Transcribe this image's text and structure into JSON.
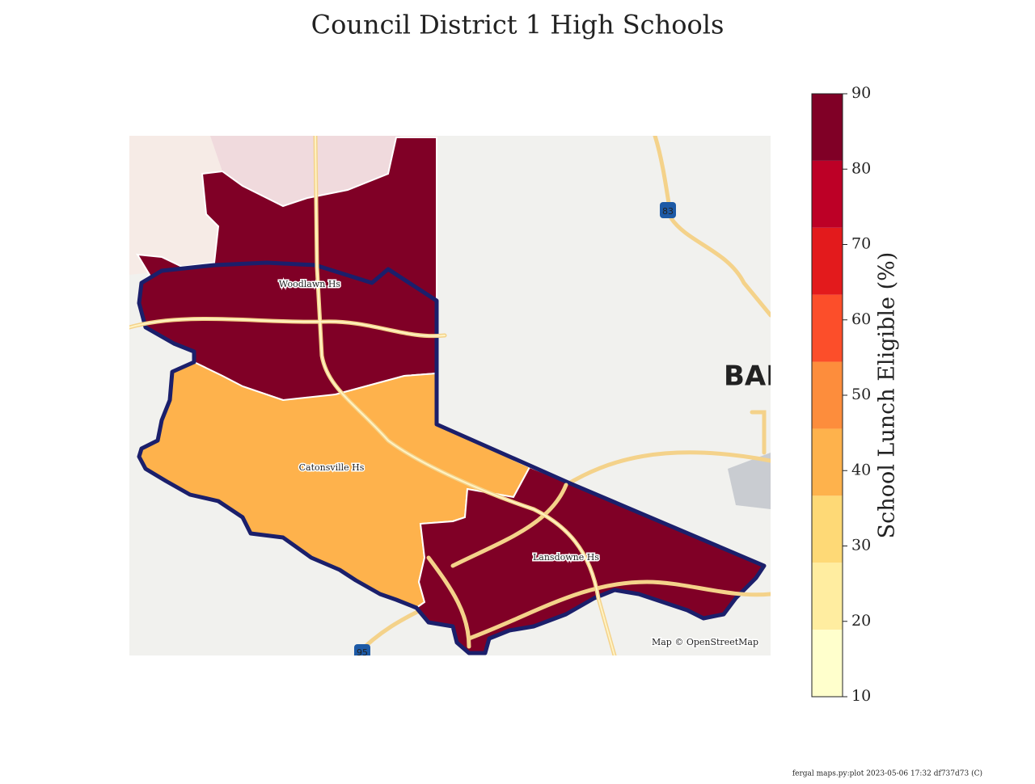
{
  "title": "Council District 1 High Schools",
  "districts": [
    {
      "label": "Woodlawn Hs",
      "value": 85
    },
    {
      "label": "Catonsville Hs",
      "value": 45
    },
    {
      "label": "Lansdowne Hs",
      "value": 85
    }
  ],
  "basemap_labels": [
    "BALT",
    "83",
    "95"
  ],
  "attribution": "Map © OpenStreetMap",
  "colorbar": {
    "label": "School Lunch Eligible (%)",
    "lim": [
      10,
      90
    ],
    "ticks": [
      10,
      20,
      30,
      40,
      50,
      60,
      70,
      80,
      90
    ],
    "colors": [
      "#ffffcc",
      "#ffeda0",
      "#fed976",
      "#feb24c",
      "#fd8d3c",
      "#fc4e2a",
      "#e31a1c",
      "#bd0026",
      "#800026"
    ]
  },
  "footer": "fergal maps.py:plot 2023-05-06 17:32 df737d73 (C)"
}
